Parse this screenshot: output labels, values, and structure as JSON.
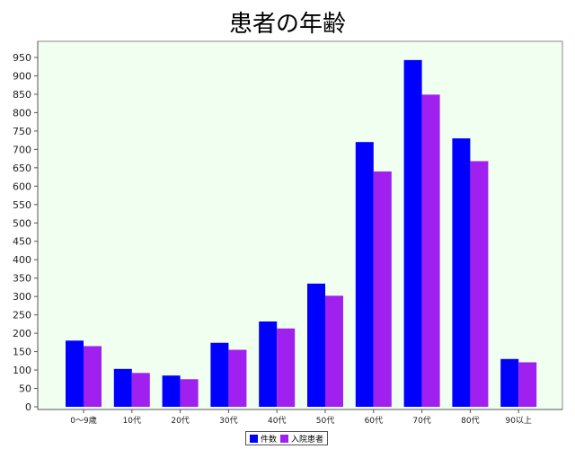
{
  "colors": {
    "series1": "#0000ff",
    "series2": "#a020f0",
    "plot_bg": "#f0fff0"
  },
  "chart_data": {
    "type": "bar",
    "title": "患者の年齢",
    "xlabel": "",
    "ylabel": "",
    "categories": [
      "0〜9歳",
      "10代",
      "20代",
      "30代",
      "40代",
      "50代",
      "60代",
      "70代",
      "80代",
      "90以上"
    ],
    "series": [
      {
        "name": "件数",
        "values": [
          180,
          103,
          85,
          174,
          232,
          335,
          720,
          943,
          730,
          130
        ]
      },
      {
        "name": "入院患者",
        "values": [
          165,
          92,
          75,
          155,
          213,
          302,
          640,
          849,
          668,
          121
        ]
      }
    ],
    "ylim": [
      0,
      950
    ],
    "yticks": [
      0,
      50,
      100,
      150,
      200,
      250,
      300,
      350,
      400,
      450,
      500,
      550,
      600,
      650,
      700,
      750,
      800,
      850,
      900,
      950
    ],
    "grid": false,
    "legend_position": "bottom-center"
  }
}
